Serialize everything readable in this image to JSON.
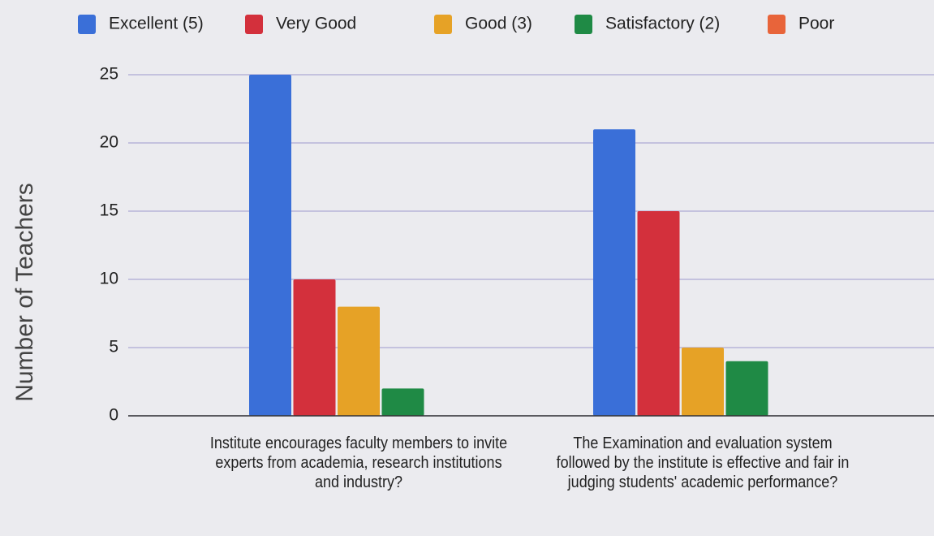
{
  "chart_data": {
    "type": "bar",
    "y_label": "Number of Teachers",
    "categories": [
      "Institute encourages faculty members to invite experts from academia, research institutions and industry?",
      "The Examination and evaluation system followed by the institute is effective and fair in judging students' academic performance?"
    ],
    "series": [
      {
        "name": "Excellent (5)",
        "color": "#3a6fd8",
        "values": [
          25,
          21
        ]
      },
      {
        "name": "Very Good",
        "color": "#d3303c",
        "values": [
          10,
          15
        ]
      },
      {
        "name": "Good (3)",
        "color": "#e6a226",
        "values": [
          8,
          5
        ]
      },
      {
        "name": "Satisfactory (2)",
        "color": "#1f8a45",
        "values": [
          2,
          4
        ]
      },
      {
        "name": "Poor",
        "color": "#e8643a",
        "values": [
          0,
          0
        ]
      }
    ],
    "ylim": [
      0,
      25
    ],
    "yticks": [
      0,
      5,
      10,
      15,
      20,
      25
    ],
    "grid": true,
    "legend": "top"
  }
}
